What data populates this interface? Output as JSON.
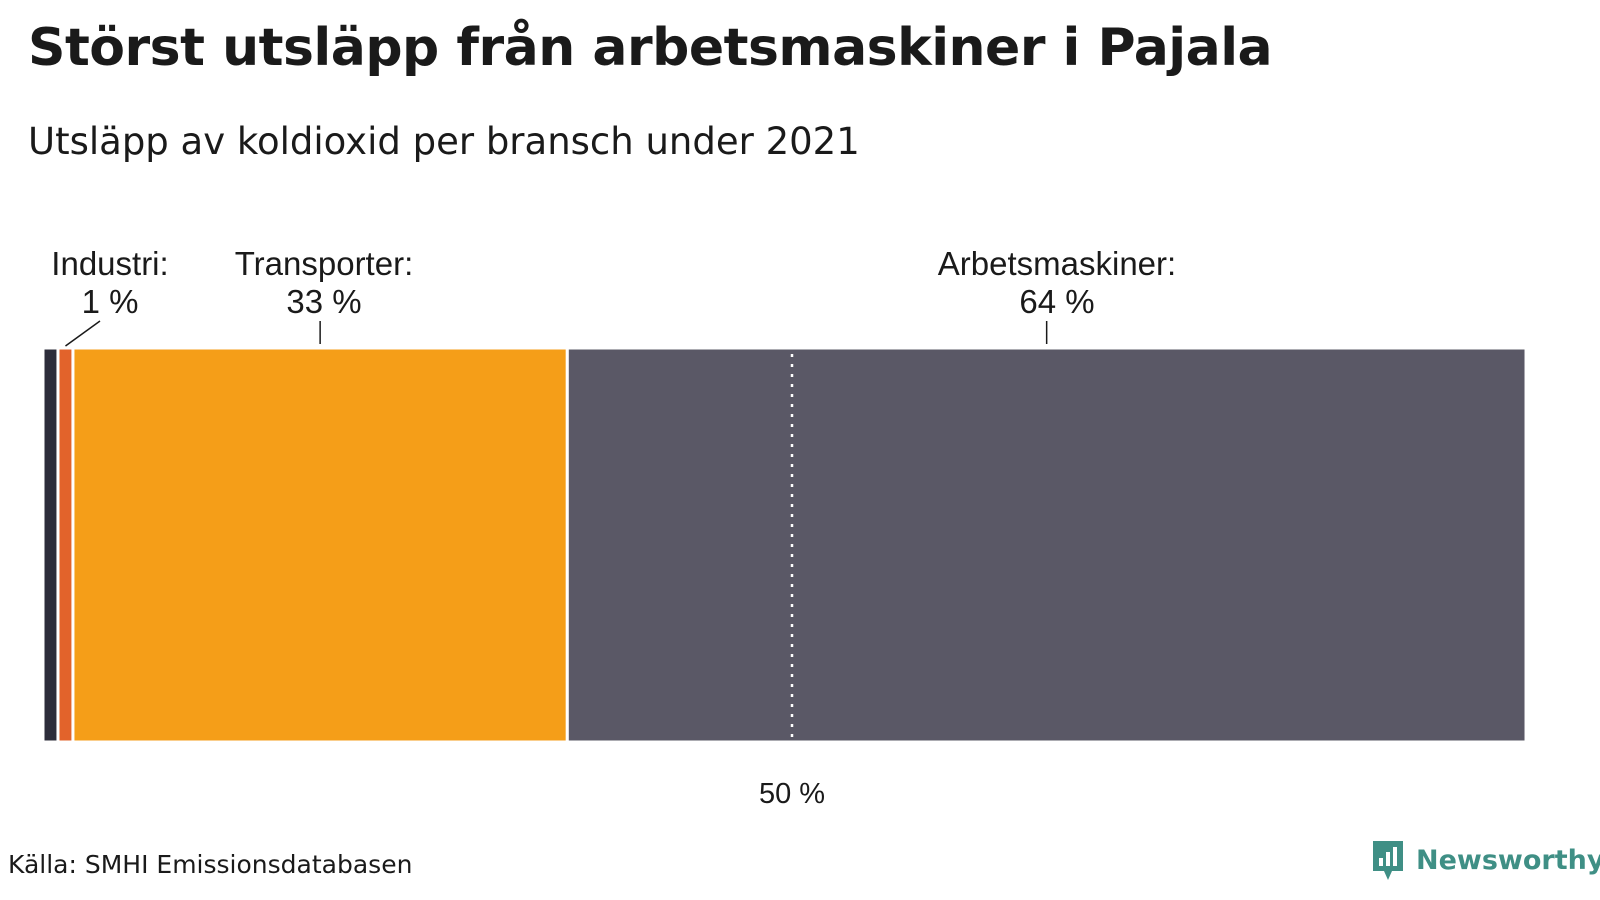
{
  "title": "Störst utsläpp från arbetsmaskiner i Pajala",
  "subtitle": "Utsläpp av koldioxid per bransch under 2021",
  "source": "Källa: SMHI Emissionsdatabasen",
  "brand": {
    "name": "Newsworthy",
    "icon": "newsworthy-logo-icon",
    "color": "#3f8f85"
  },
  "chart_data": {
    "type": "bar",
    "orientation": "horizontal-stacked",
    "unit": "%",
    "xlim": [
      0,
      100
    ],
    "segments": [
      {
        "name": "",
        "value": 1,
        "color": "#2d2d3a",
        "label": ""
      },
      {
        "name": "Industri",
        "value": 1,
        "color": "#e2632b",
        "label": "1 %"
      },
      {
        "name": "Transporter",
        "value": 33,
        "color": "#f59e18",
        "label": "33 %"
      },
      {
        "name": "Arbetsmaskiner",
        "value": 64,
        "color": "#5a5866",
        "label": "64 %"
      }
    ],
    "reference_line": {
      "value": 50,
      "label": "50 %",
      "style": "dotted",
      "color": "#ffffff"
    }
  }
}
